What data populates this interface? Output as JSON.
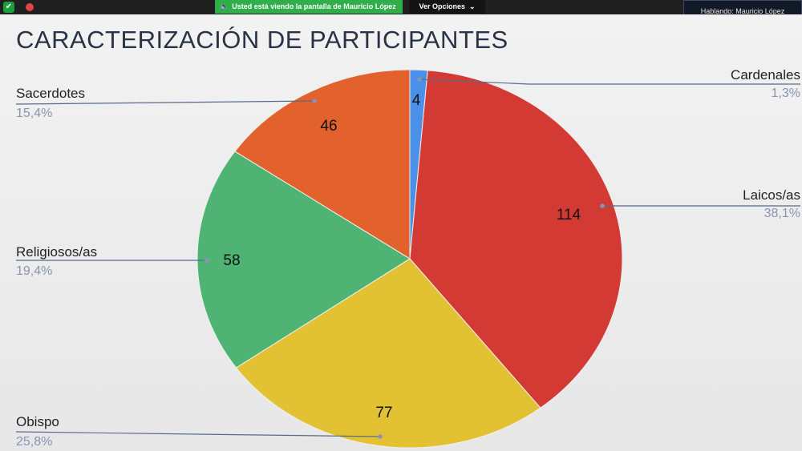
{
  "zoom": {
    "share_banner": "Usted está viendo la pantalla de  Mauricio López",
    "view_options": "Ver Opciones",
    "speaking": "Hablando: Mauricio López",
    "colors": {
      "banner": "#2fae4a",
      "bar": "#1f1f1f",
      "shield": "#1e9e3a",
      "record": "#e0443e"
    }
  },
  "slide": {
    "title": "CARACTERIZACIÓN DE PARTICIPANTES"
  },
  "chart_data": {
    "type": "pie",
    "title": "CARACTERIZACIÓN DE PARTICIPANTES",
    "slices": [
      {
        "name": "Cardenales",
        "value": 4,
        "percent": "1,3%",
        "color": "#4a8fe8"
      },
      {
        "name": "Laicos/as",
        "value": 114,
        "percent": "38,1%",
        "color": "#d43a34"
      },
      {
        "name": "Obispo",
        "value": 77,
        "percent": "25,8%",
        "color": "#e2c232"
      },
      {
        "name": "Religiosos/as",
        "value": 58,
        "percent": "19,4%",
        "color": "#4fb473"
      },
      {
        "name": "Sacerdotes",
        "value": 46,
        "percent": "15,4%",
        "color": "#e2612c"
      }
    ],
    "start_angle_deg": 0,
    "direction": "clockwise",
    "labels": "outside-with-leader-lines",
    "leader_color": "#5a6a8a"
  }
}
